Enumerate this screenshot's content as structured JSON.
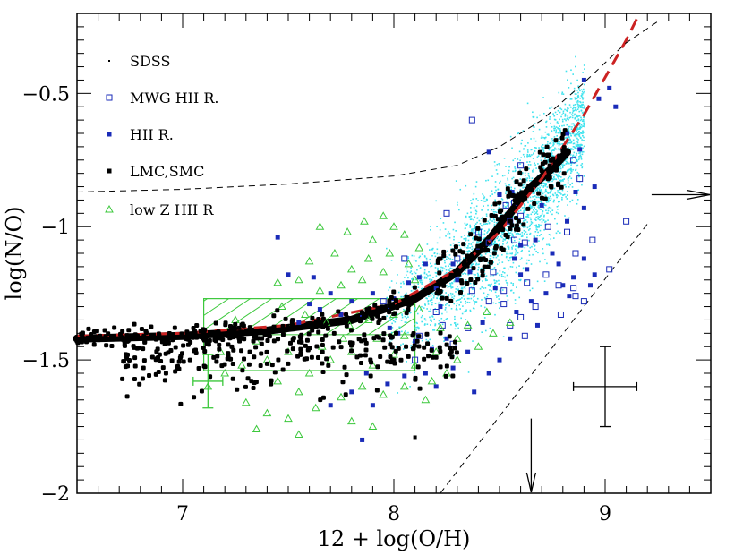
{
  "chart_data": {
    "type": "scatter",
    "title": "",
    "xlabel": "12 + log(O/H)",
    "ylabel": "log(N/O)",
    "xlim": [
      6.5,
      9.5
    ],
    "ylim": [
      -2.0,
      -0.2
    ],
    "x_ticks": [
      7,
      8,
      9
    ],
    "x_tick_labels": [
      "7",
      "8",
      "9"
    ],
    "y_ticks": [
      -0.5,
      -1.0,
      -1.5,
      -2.0
    ],
    "y_tick_labels": [
      "−0.5",
      "−1",
      "−1.5",
      "−2"
    ],
    "grid": false,
    "legend_position": "top-left",
    "legend": [
      {
        "label": "SDSS",
        "marker": "dot",
        "color": "#000000"
      },
      {
        "label": "MWG HII R.",
        "marker": "open-square",
        "color": "#1a2bb8"
      },
      {
        "label": "HII R.",
        "marker": "filled-square",
        "color": "#1a2bb8"
      },
      {
        "label": "LMC,SMC",
        "marker": "filled-square",
        "color": "#000000"
      },
      {
        "label": "low Z HII R",
        "marker": "open-triangle",
        "color": "#3cc83c"
      }
    ],
    "colors": {
      "sdss": "#3fe3ee",
      "mwg": "#1a2bb8",
      "hii": "#1a2bb8",
      "lmc_smc": "#000000",
      "lowz": "#3cc83c",
      "fit_curve": "#cc2222"
    },
    "curves": [
      {
        "kind": "black-thick-band",
        "x": [
          6.5,
          7.0,
          7.4,
          7.8,
          8.1,
          8.3,
          8.45,
          8.55,
          8.65,
          8.75,
          8.82
        ],
        "y": [
          -1.42,
          -1.41,
          -1.39,
          -1.35,
          -1.27,
          -1.17,
          -1.05,
          -0.95,
          -0.85,
          -0.78,
          -0.72
        ]
      },
      {
        "kind": "red-dashed-fit",
        "x": [
          6.5,
          7.0,
          7.5,
          8.0,
          8.3,
          8.5,
          8.7,
          8.8,
          8.9,
          9.0,
          9.1,
          9.15
        ],
        "y": [
          -1.41,
          -1.4,
          -1.37,
          -1.29,
          -1.16,
          -1.02,
          -0.82,
          -0.7,
          -0.58,
          -0.44,
          -0.3,
          -0.22
        ]
      },
      {
        "kind": "black-dashed-upper",
        "x": [
          6.5,
          7.0,
          7.5,
          8.0,
          8.3,
          8.5,
          8.7,
          8.9,
          9.1,
          9.25
        ],
        "y": [
          -0.87,
          -0.86,
          -0.84,
          -0.81,
          -0.77,
          -0.7,
          -0.6,
          -0.46,
          -0.31,
          -0.23
        ]
      },
      {
        "kind": "black-dashed-lower",
        "x": [
          8.22,
          9.2
        ],
        "y": [
          -2.0,
          -0.99
        ]
      }
    ],
    "arrows": [
      {
        "kind": "down",
        "x": 8.65,
        "y_from": -1.72,
        "y_to": -2.0
      },
      {
        "kind": "right",
        "y": -0.88,
        "x_from": 9.22,
        "x_to": 9.5
      }
    ],
    "shaded_region": {
      "x": [
        7.1,
        8.1
      ],
      "y": [
        -1.54,
        -1.27
      ],
      "color": "#3cc83c"
    },
    "error_bars": [
      {
        "x": 9.0,
        "y": -1.6,
        "xerr": 0.15,
        "yerr": 0.15,
        "color": "#000000"
      },
      {
        "x": 7.12,
        "y": -1.58,
        "xerr": 0.07,
        "yerr": 0.1,
        "color": "#3cc83c"
      }
    ],
    "series": [
      {
        "name": "MWG HII R.",
        "marker": "open-square",
        "points": [
          [
            8.37,
            -0.6
          ],
          [
            8.6,
            -0.77
          ],
          [
            8.85,
            -0.75
          ],
          [
            8.88,
            -0.82
          ],
          [
            8.57,
            -0.91
          ],
          [
            8.6,
            -0.96
          ],
          [
            8.55,
            -0.98
          ],
          [
            8.4,
            -1.04
          ],
          [
            8.45,
            -1.06
          ],
          [
            8.57,
            -1.05
          ],
          [
            8.73,
            -1.0
          ],
          [
            8.82,
            -1.02
          ],
          [
            8.62,
            -1.06
          ],
          [
            8.86,
            -1.1
          ],
          [
            9.1,
            -0.98
          ],
          [
            8.94,
            -1.05
          ],
          [
            8.3,
            -1.12
          ],
          [
            8.47,
            -1.17
          ],
          [
            8.63,
            -1.21
          ],
          [
            8.85,
            -1.23
          ],
          [
            8.9,
            -1.28
          ],
          [
            9.02,
            -1.16
          ],
          [
            8.72,
            -1.18
          ],
          [
            8.67,
            -1.3
          ],
          [
            8.52,
            -1.24
          ],
          [
            8.45,
            -1.28
          ],
          [
            8.35,
            -1.38
          ],
          [
            8.2,
            -1.32
          ],
          [
            8.28,
            -1.44
          ],
          [
            8.55,
            -1.37
          ],
          [
            8.6,
            -1.34
          ],
          [
            8.79,
            -1.33
          ],
          [
            8.86,
            -1.26
          ],
          [
            8.23,
            -1.37
          ],
          [
            8.12,
            -1.41
          ],
          [
            8.1,
            -1.5
          ],
          [
            8.62,
            -1.41
          ],
          [
            8.78,
            -1.22
          ],
          [
            8.52,
            -1.29
          ],
          [
            8.37,
            -1.24
          ],
          [
            7.95,
            -1.28
          ],
          [
            8.25,
            -0.95
          ],
          [
            8.05,
            -1.12
          ],
          [
            8.4,
            -1.02
          ],
          [
            8.53,
            -0.92
          ]
        ]
      },
      {
        "name": "HII R.",
        "marker": "filled-square",
        "points": [
          [
            8.82,
            -0.65
          ],
          [
            8.9,
            -0.45
          ],
          [
            8.97,
            -0.52
          ],
          [
            9.02,
            -0.48
          ],
          [
            9.05,
            -0.55
          ],
          [
            8.88,
            -0.71
          ],
          [
            8.95,
            -0.85
          ],
          [
            8.86,
            -0.87
          ],
          [
            8.9,
            -0.93
          ],
          [
            8.82,
            -0.98
          ],
          [
            8.7,
            -0.92
          ],
          [
            8.67,
            -1.05
          ],
          [
            8.9,
            -1.12
          ],
          [
            8.95,
            -1.18
          ],
          [
            8.85,
            -1.19
          ],
          [
            8.8,
            -1.22
          ],
          [
            8.83,
            -1.26
          ],
          [
            8.93,
            -1.22
          ],
          [
            8.78,
            -1.14
          ],
          [
            8.75,
            -1.1
          ],
          [
            8.6,
            -1.07
          ],
          [
            8.45,
            -0.72
          ],
          [
            8.5,
            -0.88
          ],
          [
            8.56,
            -0.87
          ],
          [
            8.57,
            -1.12
          ],
          [
            8.63,
            -1.16
          ],
          [
            8.48,
            -1.23
          ],
          [
            8.4,
            -1.09
          ],
          [
            8.36,
            -1.17
          ],
          [
            8.28,
            -1.14
          ],
          [
            8.3,
            -1.2
          ],
          [
            8.2,
            -1.23
          ],
          [
            8.12,
            -1.19
          ],
          [
            8.07,
            -1.21
          ],
          [
            8.15,
            -1.14
          ],
          [
            8.0,
            -1.27
          ],
          [
            7.98,
            -1.3
          ],
          [
            7.9,
            -1.25
          ],
          [
            7.85,
            -1.34
          ],
          [
            7.8,
            -1.28
          ],
          [
            7.75,
            -1.33
          ],
          [
            7.7,
            -1.25
          ],
          [
            7.65,
            -1.31
          ],
          [
            7.6,
            -1.29
          ],
          [
            7.55,
            -1.36
          ],
          [
            7.45,
            -1.04
          ],
          [
            7.5,
            -1.18
          ],
          [
            7.62,
            -1.19
          ],
          [
            7.98,
            -1.38
          ],
          [
            8.02,
            -1.4
          ],
          [
            8.1,
            -1.43
          ],
          [
            8.18,
            -1.46
          ],
          [
            8.25,
            -1.42
          ],
          [
            8.35,
            -1.47
          ],
          [
            8.28,
            -1.53
          ],
          [
            8.15,
            -1.55
          ],
          [
            8.05,
            -1.56
          ],
          [
            7.97,
            -1.59
          ],
          [
            7.87,
            -1.55
          ],
          [
            7.8,
            -1.62
          ],
          [
            7.7,
            -1.67
          ],
          [
            7.9,
            -1.67
          ],
          [
            8.2,
            -1.6
          ],
          [
            8.38,
            -1.62
          ],
          [
            8.45,
            -1.55
          ],
          [
            8.5,
            -1.5
          ],
          [
            8.55,
            -1.42
          ],
          [
            8.42,
            -1.36
          ],
          [
            8.22,
            -1.3
          ],
          [
            7.85,
            -1.8
          ],
          [
            8.65,
            -1.28
          ],
          [
            8.72,
            -1.25
          ],
          [
            8.6,
            -1.18
          ],
          [
            8.58,
            -1.32
          ],
          [
            8.68,
            -1.37
          ]
        ]
      },
      {
        "name": "low Z HII R",
        "marker": "open-triangle",
        "points": [
          [
            7.65,
            -1.0
          ],
          [
            7.78,
            -1.02
          ],
          [
            7.86,
            -0.98
          ],
          [
            7.9,
            -1.05
          ],
          [
            7.95,
            -0.96
          ],
          [
            8.0,
            -1.0
          ],
          [
            8.05,
            -1.03
          ],
          [
            7.72,
            -1.1
          ],
          [
            7.8,
            -1.16
          ],
          [
            7.88,
            -1.12
          ],
          [
            7.98,
            -1.1
          ],
          [
            8.07,
            -1.14
          ],
          [
            8.12,
            -1.08
          ],
          [
            7.6,
            -1.13
          ],
          [
            7.55,
            -1.2
          ],
          [
            7.65,
            -1.24
          ],
          [
            7.75,
            -1.22
          ],
          [
            7.85,
            -1.2
          ],
          [
            7.95,
            -1.17
          ],
          [
            8.1,
            -1.2
          ],
          [
            7.45,
            -1.21
          ],
          [
            7.47,
            -1.3
          ],
          [
            7.52,
            -1.37
          ],
          [
            7.58,
            -1.33
          ],
          [
            7.68,
            -1.36
          ],
          [
            7.79,
            -1.37
          ],
          [
            7.88,
            -1.35
          ],
          [
            8.0,
            -1.33
          ],
          [
            8.12,
            -1.31
          ],
          [
            8.22,
            -1.38
          ],
          [
            8.3,
            -1.42
          ],
          [
            8.35,
            -1.37
          ],
          [
            7.25,
            -1.35
          ],
          [
            7.35,
            -1.43
          ],
          [
            7.4,
            -1.5
          ],
          [
            7.45,
            -1.58
          ],
          [
            7.55,
            -1.62
          ],
          [
            7.6,
            -1.55
          ],
          [
            7.7,
            -1.5
          ],
          [
            7.8,
            -1.47
          ],
          [
            7.9,
            -1.52
          ],
          [
            8.0,
            -1.48
          ],
          [
            8.1,
            -1.52
          ],
          [
            8.18,
            -1.58
          ],
          [
            8.25,
            -1.55
          ],
          [
            7.3,
            -1.66
          ],
          [
            7.4,
            -1.7
          ],
          [
            7.5,
            -1.72
          ],
          [
            7.63,
            -1.68
          ],
          [
            7.75,
            -1.64
          ],
          [
            7.85,
            -1.6
          ],
          [
            7.95,
            -1.63
          ],
          [
            8.05,
            -1.6
          ],
          [
            8.15,
            -1.65
          ],
          [
            7.2,
            -1.55
          ],
          [
            7.28,
            -1.52
          ],
          [
            7.12,
            -1.6
          ],
          [
            7.5,
            -1.47
          ],
          [
            7.66,
            -1.45
          ],
          [
            7.76,
            -1.42
          ],
          [
            7.92,
            -1.42
          ],
          [
            8.05,
            -1.41
          ],
          [
            8.2,
            -1.47
          ],
          [
            8.3,
            -1.5
          ],
          [
            8.4,
            -1.45
          ],
          [
            8.47,
            -1.4
          ],
          [
            8.44,
            -1.32
          ],
          [
            8.55,
            -1.36
          ],
          [
            7.35,
            -1.76
          ],
          [
            7.55,
            -1.78
          ],
          [
            7.8,
            -1.73
          ],
          [
            7.18,
            -1.47
          ],
          [
            7.9,
            -1.75
          ]
        ]
      }
    ],
    "sdss_ellipse": {
      "center_x": 8.45,
      "center_y": -1.2,
      "extent_x": [
        7.9,
        8.95
      ],
      "extent_y": [
        -1.55,
        -0.3
      ]
    },
    "lmc_smc_points_note": ""
  }
}
